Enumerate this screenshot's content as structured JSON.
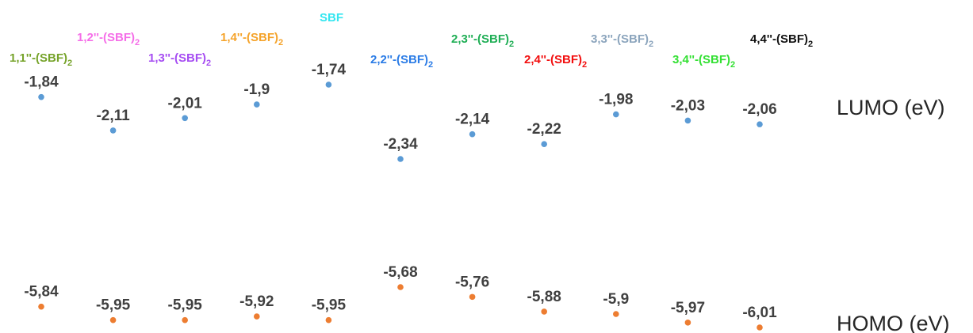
{
  "chart_data": {
    "type": "scatter",
    "categories": [
      {
        "name": "1,1''-(SBF)",
        "sub": "2",
        "color": "#76a32a"
      },
      {
        "name": "1,2''-(SBF)",
        "sub": "2",
        "color": "#f56ee8"
      },
      {
        "name": "1,3''-(SBF)",
        "sub": "2",
        "color": "#a64df2"
      },
      {
        "name": "1,4''-(SBF)",
        "sub": "2",
        "color": "#f5a32a"
      },
      {
        "name": "SBF",
        "sub": "",
        "color": "#33e6f0"
      },
      {
        "name": "2,2''-(SBF)",
        "sub": "2",
        "color": "#2b7ce6"
      },
      {
        "name": "2,3''-(SBF)",
        "sub": "2",
        "color": "#1fae55"
      },
      {
        "name": "2,4''-(SBF)",
        "sub": "2",
        "color": "#f20f0f"
      },
      {
        "name": "3,3''-(SBF)",
        "sub": "2",
        "color": "#8ca5bd"
      },
      {
        "name": "3,4''-(SBF)",
        "sub": "2",
        "color": "#33e033"
      },
      {
        "name": "4,4''-(SBF)",
        "sub": "2",
        "color": "#111111"
      }
    ],
    "series": [
      {
        "name": "LUMO (eV)",
        "color": "#5b9bd5",
        "values": [
          -1.84,
          -2.11,
          -2.01,
          -1.9,
          -1.74,
          -2.34,
          -2.14,
          -2.22,
          -1.98,
          -2.03,
          -2.06
        ],
        "labels": [
          "-1,84",
          "-2,11",
          "-2,01",
          "-1,9",
          "-1,74",
          "-2,34",
          "-2,14",
          "-2,22",
          "-1,98",
          "-2,03",
          "-2,06"
        ]
      },
      {
        "name": "HOMO (eV)",
        "color": "#ed7d31",
        "values": [
          -5.84,
          -5.95,
          -5.95,
          -5.92,
          -5.95,
          -5.68,
          -5.76,
          -5.88,
          -5.9,
          -5.97,
          -6.01
        ],
        "labels": [
          "-5,84",
          "-5,95",
          "-5,95",
          "-5,92",
          "-5,95",
          "-5,68",
          "-5,76",
          "-5,88",
          "-5,9",
          "-5,97",
          "-6,01"
        ]
      }
    ],
    "ylabel": "",
    "xlabel": "",
    "title": "",
    "grid": false
  }
}
